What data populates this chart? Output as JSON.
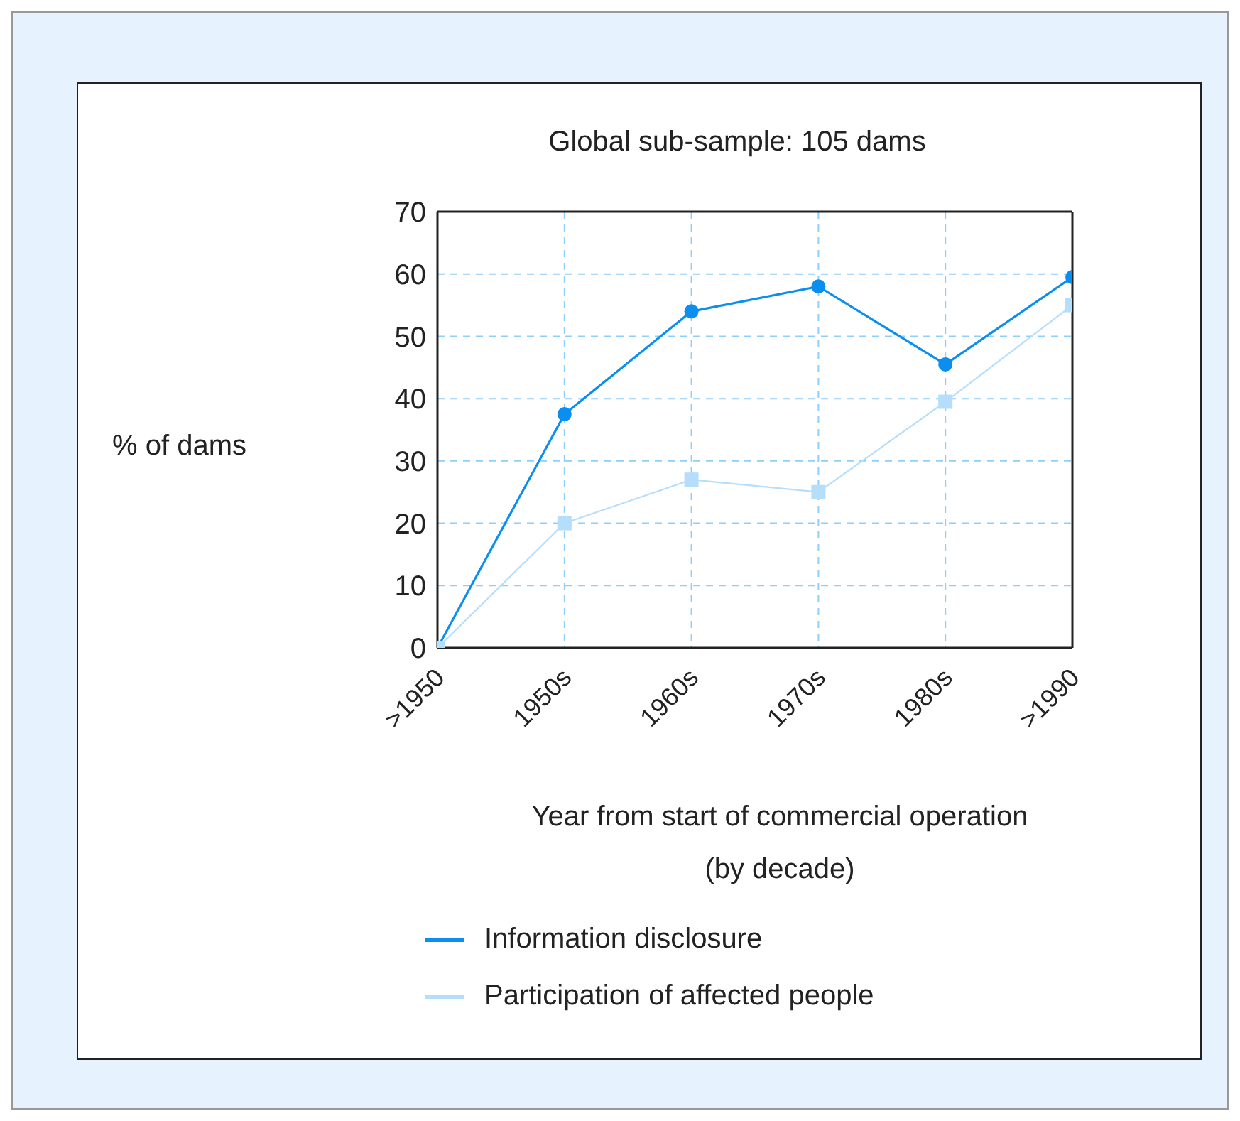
{
  "chart_data": {
    "type": "line",
    "title": "Global sub-sample: 105 dams",
    "xlabel": "Year from start of commercial operation\n(by decade)",
    "ylabel": "% of dams",
    "categories": [
      ">1950",
      "1950s",
      "1960s",
      "1970s",
      "1980s",
      ">1990"
    ],
    "series": [
      {
        "name": "Information disclosure",
        "color": "#0a8ef0",
        "marker": "circle",
        "values": [
          0,
          37.5,
          54,
          58,
          45.5,
          59.5
        ]
      },
      {
        "name": "Participation of affected people",
        "color": "#b5defc",
        "marker": "square",
        "values": [
          0,
          20,
          27,
          25,
          39.5,
          55
        ]
      }
    ],
    "ylim": [
      0,
      70
    ],
    "yticks": [
      0,
      10,
      20,
      30,
      40,
      50,
      60,
      70
    ],
    "grid": true,
    "legend": "bottom",
    "line_style": "solid"
  }
}
